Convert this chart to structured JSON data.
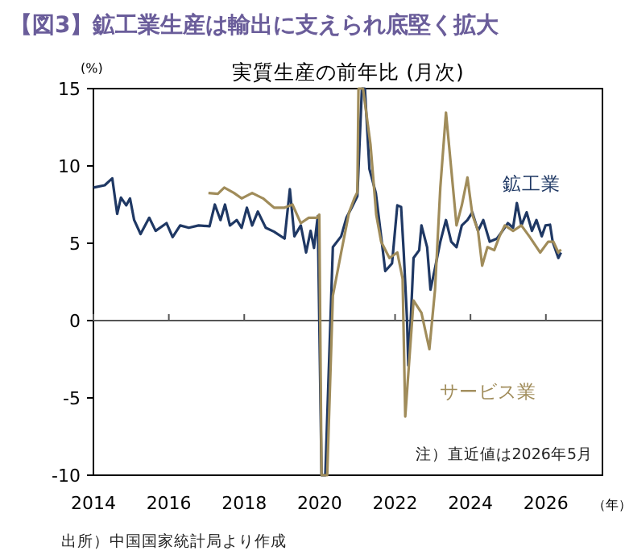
{
  "chart_data": {
    "type": "line",
    "title": "【図3】鉱工業生産は輸出に支えられ底堅く拡大",
    "subtitle": "実質生産の前年比 (月次)",
    "ylabel": "(%)",
    "xlabel": "（年）",
    "xlim": [
      2014,
      2027.5
    ],
    "xticks": [
      2014,
      2016,
      2018,
      2020,
      2022,
      2024,
      2026
    ],
    "ylim": [
      -10,
      15
    ],
    "yticks": [
      -10,
      -5,
      0,
      5,
      10,
      15
    ],
    "ref_lines": [
      {
        "axis": "y",
        "value": 0,
        "color": "#555555"
      }
    ],
    "legend": false,
    "marker": "none",
    "line_style": "solid",
    "series": [
      {
        "name": "鉱工業",
        "color": "#1f3864",
        "x": [
          2014.0,
          2014.3,
          2014.5,
          2014.63,
          2014.73,
          2014.87,
          2014.97,
          2015.08,
          2015.25,
          2015.48,
          2015.65,
          2015.94,
          2016.1,
          2016.3,
          2016.53,
          2016.79,
          2017.08,
          2017.22,
          2017.37,
          2017.49,
          2017.62,
          2017.8,
          2017.93,
          2018.07,
          2018.21,
          2018.36,
          2018.57,
          2018.79,
          2019.07,
          2019.21,
          2019.33,
          2019.5,
          2019.64,
          2019.76,
          2019.85,
          2019.95,
          2020.05,
          2020.15,
          2020.35,
          2020.57,
          2020.71,
          2020.85,
          2021.0,
          2021.12,
          2021.2,
          2021.32,
          2021.49,
          2021.63,
          2021.74,
          2021.92,
          2022.06,
          2022.16,
          2022.23,
          2022.32,
          2022.35,
          2022.42,
          2022.49,
          2022.64,
          2022.7,
          2022.85,
          2022.94,
          2023.06,
          2023.2,
          2023.35,
          2023.49,
          2023.63,
          2023.77,
          2023.92,
          2024.05,
          2024.2,
          2024.34,
          2024.51,
          2024.7,
          2024.85,
          2024.99,
          2025.13,
          2025.23,
          2025.35,
          2025.49,
          2025.63,
          2025.75,
          2025.89,
          2025.99,
          2026.11,
          2026.18,
          2026.33,
          2026.4
        ],
        "values": [
          8.6,
          8.75,
          9.2,
          6.9,
          7.95,
          7.45,
          7.9,
          6.5,
          5.6,
          6.65,
          5.8,
          6.3,
          5.4,
          6.15,
          6.0,
          6.15,
          6.1,
          7.5,
          6.5,
          7.5,
          6.15,
          6.5,
          6.0,
          7.3,
          6.15,
          7.05,
          6.0,
          5.75,
          5.3,
          8.5,
          5.45,
          6.15,
          4.4,
          5.8,
          4.7,
          6.75,
          -10,
          -10,
          4.75,
          5.45,
          6.65,
          7.3,
          8.05,
          15,
          15,
          9.8,
          8.25,
          5.45,
          3.2,
          3.7,
          7.45,
          7.35,
          4.4,
          -0.1,
          -2.9,
          0.25,
          4.05,
          4.55,
          6.15,
          4.75,
          2.0,
          3.4,
          5.1,
          6.5,
          5.1,
          4.75,
          6.15,
          6.5,
          7.0,
          5.8,
          6.5,
          5.1,
          5.3,
          5.8,
          6.3,
          6.0,
          7.6,
          6.15,
          7.0,
          5.8,
          6.5,
          5.45,
          6.15,
          6.2,
          5.1,
          4.05,
          4.4
        ]
      },
      {
        "name": "サービス業",
        "color": "#a08c5a",
        "x": [
          2017.05,
          2017.3,
          2017.47,
          2017.73,
          2017.93,
          2018.21,
          2018.5,
          2018.79,
          2019.07,
          2019.28,
          2019.5,
          2019.71,
          2019.93,
          2019.99,
          2020.05,
          2020.2,
          2020.35,
          2020.57,
          2020.78,
          2020.92,
          2021.0,
          2021.03,
          2021.15,
          2021.35,
          2021.5,
          2021.63,
          2021.85,
          2022.06,
          2022.2,
          2022.27,
          2022.49,
          2022.7,
          2022.91,
          2023.06,
          2023.2,
          2023.35,
          2023.49,
          2023.63,
          2023.77,
          2023.92,
          2024.05,
          2024.2,
          2024.31,
          2024.45,
          2024.63,
          2024.77,
          2024.91,
          2025.13,
          2025.35,
          2025.56,
          2025.85,
          2026.06,
          2026.2,
          2026.33,
          2026.4
        ],
        "values": [
          8.25,
          8.2,
          8.6,
          8.25,
          7.9,
          8.25,
          7.9,
          7.3,
          7.3,
          7.5,
          6.3,
          6.65,
          6.65,
          6.85,
          -10,
          -10,
          1.6,
          4.4,
          7.0,
          7.9,
          8.3,
          15,
          15,
          11.35,
          6.85,
          5.1,
          4.05,
          4.4,
          2.7,
          -6.2,
          1.3,
          0.5,
          -1.85,
          2.0,
          8.6,
          13.45,
          9.8,
          6.15,
          7.45,
          9.25,
          6.85,
          5.8,
          3.55,
          4.75,
          4.55,
          5.45,
          6.15,
          5.8,
          6.15,
          5.45,
          4.4,
          5.1,
          5.1,
          4.4,
          4.6
        ]
      }
    ],
    "annotations": [
      "注）直近値は2026年5月",
      "出所）中国国家統計局より作成"
    ]
  }
}
